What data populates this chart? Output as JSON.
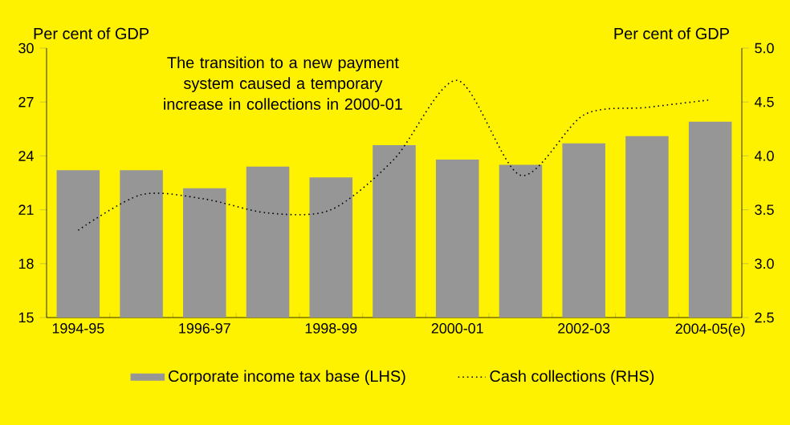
{
  "chart_data": {
    "type": "bar",
    "categories": [
      "1994-95",
      null,
      "1996-97",
      null,
      "1998-99",
      null,
      "2000-01",
      null,
      "2002-03",
      null,
      "2004-05(e)"
    ],
    "series": [
      {
        "name": "Corporate income tax base (LHS)",
        "color": "#969696",
        "values": [
          23.2,
          23.2,
          22.2,
          23.4,
          22.8,
          24.6,
          23.8,
          23.5,
          24.7,
          25.1,
          25.9
        ]
      },
      {
        "name": "Cash collections (RHS)",
        "type": "line",
        "axis": "y2",
        "color": "#000000",
        "line_style": "dotted",
        "values": [
          3.31,
          3.64,
          3.6,
          3.47,
          3.5,
          3.97,
          4.7,
          3.82,
          4.38,
          4.45,
          4.52
        ]
      }
    ],
    "ylabel": "Per cent of GDP",
    "y2label": "Per cent of GDP",
    "ylim": [
      15,
      30
    ],
    "yticks": [
      15,
      18,
      21,
      24,
      27,
      30
    ],
    "y2lim": [
      2.5,
      5.0
    ],
    "y2ticks": [
      {
        "value": 2.5,
        "label": "2.5"
      },
      {
        "value": 3.0,
        "label": "3.0"
      },
      {
        "value": 3.5,
        "label": "3.5"
      },
      {
        "value": 4.0,
        "label": "4.0"
      },
      {
        "value": 4.5,
        "label": "4.5"
      },
      {
        "value": 5.0,
        "label": "5.0"
      }
    ],
    "annotations": [
      "The transition to a new payment system caused a temporary increase in collections in 2000-01"
    ],
    "legend": "bottom"
  }
}
